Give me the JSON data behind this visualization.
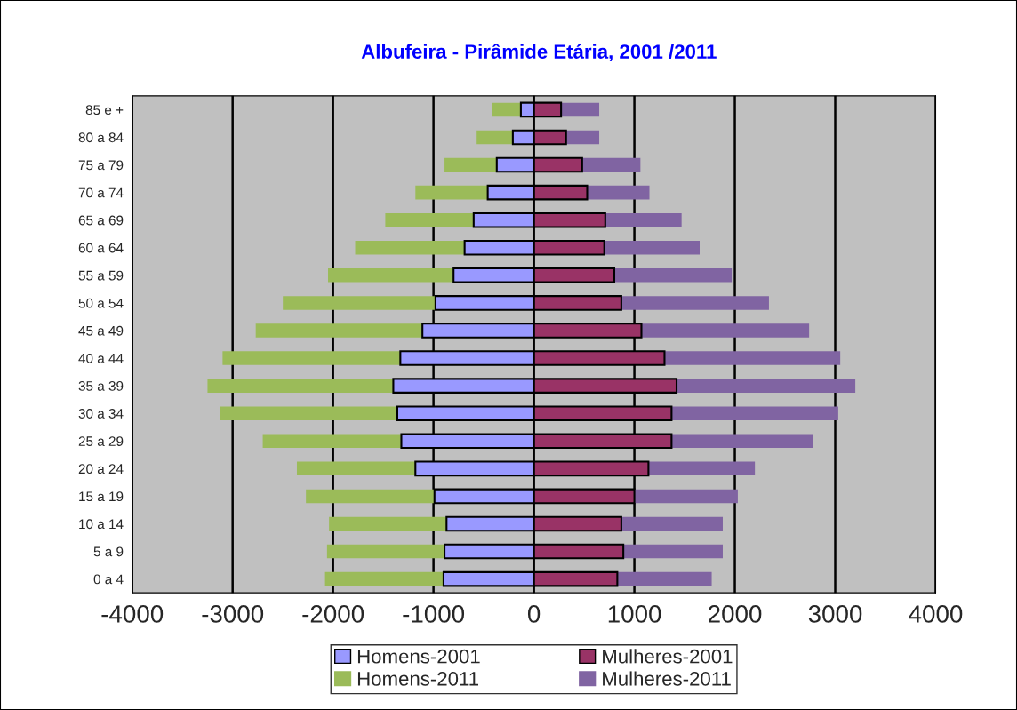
{
  "chart_data": {
    "type": "bar",
    "orientation": "horizontal",
    "title": "Albufeira - Pirâmide Etária, 2001 /2011",
    "categories": [
      "85 e +",
      "80 a 84",
      "75 a 79",
      "70 a 74",
      "65 a 69",
      "60 a 64",
      "55 a 59",
      "50 a 54",
      "45 a 49",
      "40 a 44",
      "35 a 39",
      "30 a 34",
      "25 a 29",
      "20 a 24",
      "15 a 19",
      "10 a 14",
      "5 a 9",
      "0 a 4"
    ],
    "series": [
      {
        "name": "Homens-2001",
        "color": "#9999ff",
        "values": [
          -130,
          -210,
          -370,
          -460,
          -600,
          -690,
          -800,
          -980,
          -1110,
          -1330,
          -1400,
          -1360,
          -1320,
          -1180,
          -990,
          -870,
          -890,
          -900
        ]
      },
      {
        "name": "Mulheres-2001",
        "color": "#993366",
        "values": [
          270,
          320,
          480,
          530,
          710,
          700,
          800,
          870,
          1070,
          1300,
          1420,
          1370,
          1370,
          1140,
          1000,
          870,
          890,
          830
        ]
      },
      {
        "name": "Homens-2011",
        "color": "#9bbb59",
        "values": [
          -290,
          -360,
          -520,
          -720,
          -880,
          -1090,
          -1250,
          -1520,
          -1660,
          -1770,
          -1850,
          -1770,
          -1380,
          -1180,
          -1280,
          -1170,
          -1170,
          -1180
        ]
      },
      {
        "name": "Mulheres-2011",
        "color": "#8064a2",
        "values": [
          380,
          330,
          580,
          620,
          760,
          950,
          1170,
          1470,
          1670,
          1750,
          1780,
          1660,
          1410,
          1060,
          1030,
          1010,
          990,
          940
        ]
      }
    ],
    "stacked": true,
    "xlim": [
      -4000,
      4000
    ],
    "xticks": [
      -4000,
      -3000,
      -2000,
      -1000,
      0,
      1000,
      2000,
      3000,
      4000
    ],
    "grid": "x",
    "legend": "bottom"
  }
}
